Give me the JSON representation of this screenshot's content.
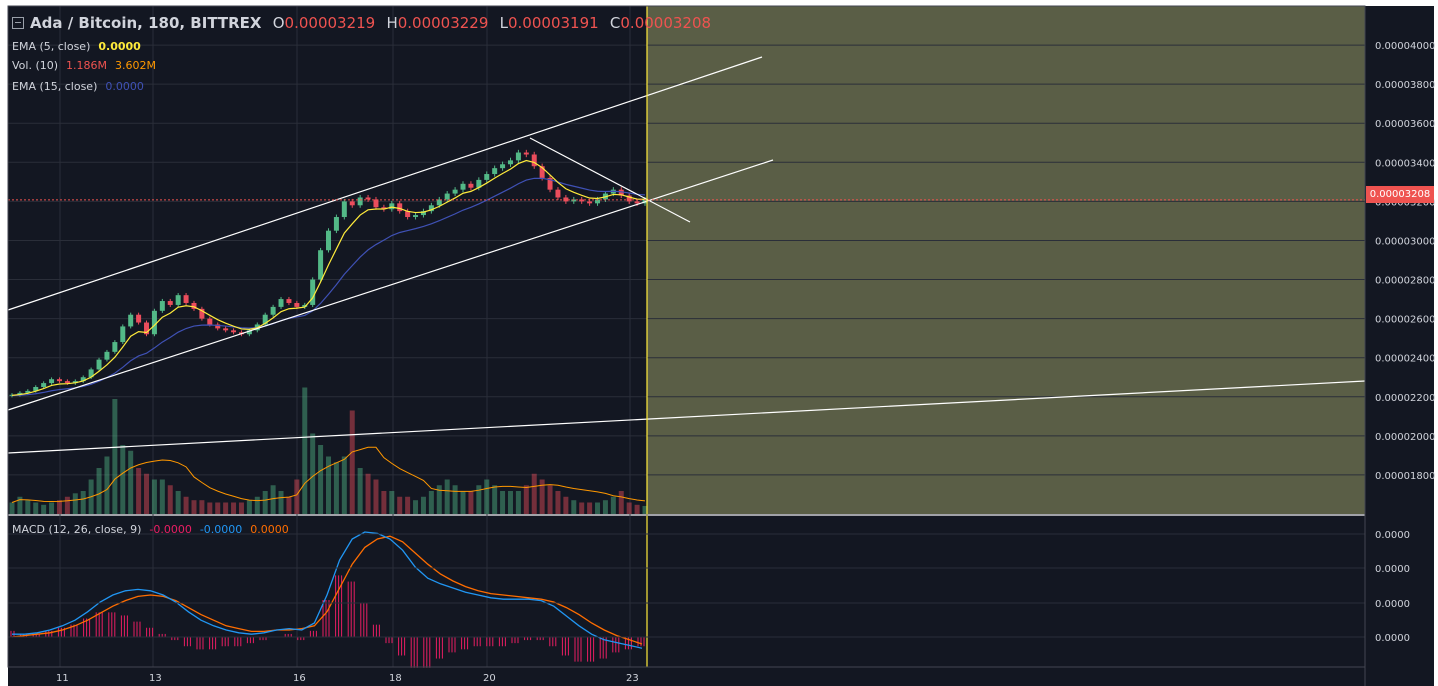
{
  "header": {
    "symbol": "Ada / Bitcoin, 180, BITTREX",
    "open_label": "O",
    "open": "0.00003219",
    "high_label": "H",
    "high": "0.00003229",
    "low_label": "L",
    "low": "0.00003191",
    "close_label": "C",
    "close": "0.00003208"
  },
  "indicators": {
    "ema5": {
      "label": "EMA (5, close)",
      "value": "0.0000",
      "color": "#ffeb3b"
    },
    "vol": {
      "label": "Vol. (10)",
      "value1": "1.186M",
      "value2": "3.602M",
      "color1": "#ef5350",
      "color2": "#ff9800"
    },
    "ema15": {
      "label": "EMA (15, close)",
      "value": "0.0000",
      "color": "#3f51b5"
    },
    "macd": {
      "label": "MACD (12, 26, close, 9)",
      "hist": "-0.0000",
      "macd": "-0.0000",
      "signal": "0.0000",
      "hist_color": "#e91e63",
      "macd_color": "#2196f3",
      "signal_color": "#ff6d00"
    }
  },
  "price_axis": {
    "ticks": [
      "0.00004000",
      "0.00003800",
      "0.00003600",
      "0.00003400",
      "0.00003200",
      "0.00003000",
      "0.00002800",
      "0.00002600",
      "0.00002400",
      "0.00002200",
      "0.00002000",
      "0.00001800"
    ],
    "last_price": "0.00003208"
  },
  "macd_axis": {
    "ticks": [
      "0.0000",
      "0.0000",
      "0.0000",
      "0.0000"
    ]
  },
  "time_axis": {
    "ticks": [
      "11",
      "13",
      "16",
      "18",
      "20",
      "23"
    ]
  },
  "colors": {
    "background": "#131722",
    "up": "#53b987",
    "down": "#eb4d5c",
    "highlight_zone": "#5a5e46",
    "vertical_line": "#ffeb3b",
    "trendline": "#ffffff"
  },
  "chart_data": {
    "type": "candlestick",
    "symbol": "Ada / Bitcoin, 180, BITTREX",
    "x_ticks": [
      "11",
      "13",
      "16",
      "18",
      "20",
      "23"
    ],
    "ylim": [
      1.6e-05,
      4.2e-05
    ],
    "yticks": [
      1.8e-05,
      2e-05,
      2.2e-05,
      2.4e-05,
      2.6e-05,
      2.8e-05,
      3e-05,
      3.2e-05,
      3.4e-05,
      3.6e-05,
      3.8e-05,
      4e-05
    ],
    "close_series": [
      2.21e-05,
      2.22e-05,
      2.23e-05,
      2.25e-05,
      2.27e-05,
      2.29e-05,
      2.28e-05,
      2.27e-05,
      2.28e-05,
      2.3e-05,
      2.34e-05,
      2.39e-05,
      2.43e-05,
      2.48e-05,
      2.56e-05,
      2.62e-05,
      2.58e-05,
      2.52e-05,
      2.64e-05,
      2.69e-05,
      2.67e-05,
      2.72e-05,
      2.68e-05,
      2.65e-05,
      2.6e-05,
      2.57e-05,
      2.55e-05,
      2.54e-05,
      2.53e-05,
      2.52e-05,
      2.54e-05,
      2.57e-05,
      2.62e-05,
      2.66e-05,
      2.7e-05,
      2.68e-05,
      2.66e-05,
      2.67e-05,
      2.8e-05,
      2.95e-05,
      3.05e-05,
      3.12e-05,
      3.2e-05,
      3.18e-05,
      3.22e-05,
      3.21e-05,
      3.17e-05,
      3.16e-05,
      3.19e-05,
      3.15e-05,
      3.12e-05,
      3.13e-05,
      3.15e-05,
      3.18e-05,
      3.21e-05,
      3.24e-05,
      3.26e-05,
      3.29e-05,
      3.27e-05,
      3.31e-05,
      3.34e-05,
      3.37e-05,
      3.39e-05,
      3.41e-05,
      3.45e-05,
      3.44e-05,
      3.38e-05,
      3.32e-05,
      3.26e-05,
      3.22e-05,
      3.2e-05,
      3.21e-05,
      3.2e-05,
      3.19e-05,
      3.21e-05,
      3.24e-05,
      3.26e-05,
      3.23e-05,
      3.2e-05,
      3.19e-05,
      3.21e-05
    ],
    "volume_rel": [
      0.1,
      0.15,
      0.12,
      0.1,
      0.08,
      0.1,
      0.12,
      0.15,
      0.18,
      0.2,
      0.3,
      0.4,
      0.5,
      1.0,
      0.6,
      0.55,
      0.4,
      0.35,
      0.3,
      0.3,
      0.25,
      0.2,
      0.15,
      0.12,
      0.12,
      0.1,
      0.1,
      0.1,
      0.1,
      0.1,
      0.12,
      0.15,
      0.2,
      0.25,
      0.2,
      0.15,
      0.3,
      1.1,
      0.7,
      0.6,
      0.5,
      0.45,
      0.5,
      0.9,
      0.4,
      0.35,
      0.3,
      0.2,
      0.2,
      0.15,
      0.15,
      0.12,
      0.15,
      0.2,
      0.25,
      0.3,
      0.25,
      0.2,
      0.2,
      0.25,
      0.3,
      0.25,
      0.2,
      0.2,
      0.2,
      0.25,
      0.35,
      0.3,
      0.25,
      0.2,
      0.15,
      0.12,
      0.1,
      0.1,
      0.1,
      0.12,
      0.15,
      0.2,
      0.1,
      0.08,
      0.07
    ],
    "macd_series": [
      0.02,
      0.02,
      0.03,
      0.05,
      0.08,
      0.12,
      0.18,
      0.25,
      0.3,
      0.33,
      0.34,
      0.33,
      0.3,
      0.25,
      0.18,
      0.12,
      0.08,
      0.05,
      0.03,
      0.02,
      0.03,
      0.05,
      0.06,
      0.05,
      0.1,
      0.3,
      0.55,
      0.7,
      0.75,
      0.74,
      0.7,
      0.62,
      0.5,
      0.42,
      0.38,
      0.35,
      0.32,
      0.3,
      0.28,
      0.27,
      0.27,
      0.27,
      0.26,
      0.22,
      0.15,
      0.08,
      0.02,
      -0.02,
      -0.04,
      -0.06,
      -0.08
    ],
    "signal_series": [
      0.0,
      0.01,
      0.02,
      0.03,
      0.05,
      0.08,
      0.12,
      0.17,
      0.22,
      0.26,
      0.29,
      0.3,
      0.29,
      0.26,
      0.21,
      0.16,
      0.12,
      0.08,
      0.06,
      0.04,
      0.04,
      0.05,
      0.05,
      0.06,
      0.08,
      0.18,
      0.35,
      0.52,
      0.64,
      0.7,
      0.72,
      0.68,
      0.6,
      0.52,
      0.45,
      0.4,
      0.36,
      0.33,
      0.31,
      0.3,
      0.29,
      0.28,
      0.27,
      0.25,
      0.21,
      0.16,
      0.1,
      0.05,
      0.01,
      -0.02,
      -0.05
    ]
  }
}
